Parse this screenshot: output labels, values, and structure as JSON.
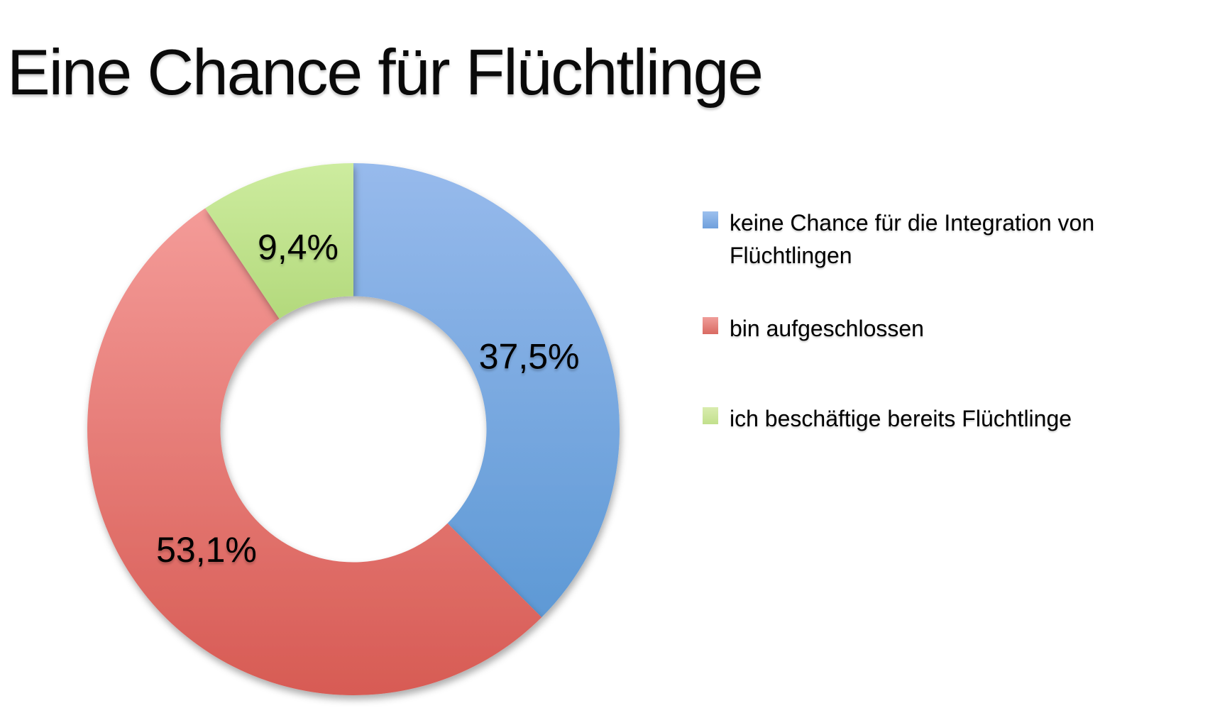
{
  "page": {
    "background": "#ffffff"
  },
  "header": {
    "title": "Eine Chance für Flüchtlinge"
  },
  "chart_data": {
    "type": "pie",
    "subtype": "donut",
    "title": "Eine Chance für Flüchtlinge",
    "direction": "clockwise",
    "start_angle_deg": 0,
    "inner_radius_ratio": 0.5,
    "legend_position": "right",
    "grid": false,
    "slices": [
      {
        "label": "keine Chance für die Integration von Flüchtlingen",
        "value_pct": 37.5,
        "value_label": "37,5%",
        "color_top": "#97BAEC",
        "color_bottom": "#5E99D5"
      },
      {
        "label": "bin aufgeschlossen",
        "value_pct": 53.1,
        "value_label": "53,1%",
        "color_top": "#F49B98",
        "color_bottom": "#D75B54"
      },
      {
        "label": "ich beschäftige bereits Flüchtlinge",
        "value_pct": 9.4,
        "value_label": "9,4%",
        "color_top": "#CDEC9F",
        "color_bottom": "#B3D97C"
      }
    ]
  },
  "legend": {
    "items": [
      {
        "label": "keine Chance für die Integration von Flüchtlingen",
        "swatch_top": "#9CC0EE",
        "swatch_bottom": "#6FA0DC"
      },
      {
        "label": "bin aufgeschlossen",
        "swatch_top": "#F09E9A",
        "swatch_bottom": "#D96A62"
      },
      {
        "label": "ich beschäftige bereits Flüchtlinge",
        "swatch_top": "#D9ECAF",
        "swatch_bottom": "#C2E08C"
      }
    ]
  }
}
